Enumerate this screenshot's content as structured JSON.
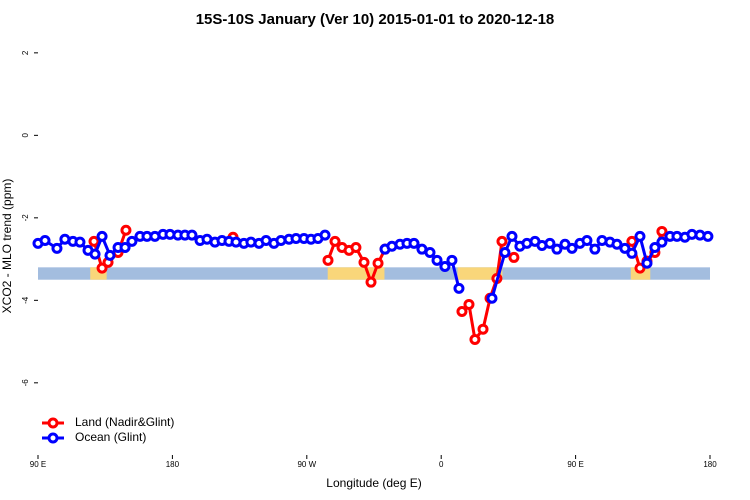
{
  "chart_data": {
    "type": "line",
    "title": "15S-10S January (Ver 10)   2015-01-01 to 2020-12-18",
    "x_label": "Longitude (deg E)",
    "y_label": "XCO2 - MLO trend (ppm)",
    "xlim": [
      90,
      540
    ],
    "xticks": [
      {
        "value": 90,
        "label": "90 E"
      },
      180,
      {
        "value": 270,
        "label": "90 W"
      },
      {
        "value": 360,
        "label": "0"
      },
      {
        "value": 450,
        "label": "90 E"
      },
      {
        "value": 540,
        "label": "180"
      }
    ],
    "ylim": [
      -7.75,
      2.36
    ],
    "yticks": [
      2,
      0,
      -2,
      -4,
      -6
    ],
    "legend": "bottom-left",
    "band": {
      "ylim": [
        -3.5,
        -3.2
      ],
      "color": "#a3bddf",
      "land_color": "#f9d67a",
      "land_spans": [
        [
          125,
          136
        ],
        [
          284,
          322
        ],
        [
          371,
          401
        ],
        [
          487,
          500
        ]
      ]
    },
    "series": [
      {
        "name": "Land (Nadir&Glint)",
        "color": "#ff0000",
        "x": [
          127.5,
          132.9,
          136.9,
          143.6,
          148.9,
          null,
          220.6,
          null,
          284.2,
          288.9,
          293.6,
          298.3,
          302.9,
          308.3,
          313.0,
          317.7,
          322.4,
          null,
          373.9,
          378.6,
          382.6,
          388.0,
          392.7,
          397.3,
          400.7,
          null,
          408.7,
          null,
          487.7,
          493.1,
          497.8,
          503.1,
          507.8
        ],
        "values": [
          -2.57,
          -3.22,
          -3.08,
          -2.84,
          -2.3,
          null,
          -2.47,
          null,
          -3.03,
          -2.57,
          -2.72,
          -2.79,
          -2.72,
          -3.08,
          -3.56,
          -3.1,
          -2.76,
          null,
          -4.27,
          -4.1,
          -4.95,
          -4.7,
          -3.95,
          -3.47,
          -2.57,
          null,
          -2.96,
          null,
          -2.57,
          -3.22,
          -3.05,
          -2.84,
          -2.33
        ]
      },
      {
        "name": "Ocean (Glint)",
        "color": "#0000ff",
        "x": [
          90.0,
          94.7,
          102.7,
          108.0,
          113.4,
          118.1,
          123.5,
          128.2,
          132.9,
          138.2,
          143.6,
          148.3,
          152.9,
          158.3,
          163.0,
          168.3,
          173.7,
          178.4,
          183.7,
          188.4,
          193.1,
          198.5,
          203.2,
          208.5,
          213.2,
          217.9,
          222.6,
          227.9,
          232.6,
          238.0,
          242.7,
          248.0,
          252.7,
          258.1,
          262.8,
          268.1,
          272.8,
          277.5,
          282.2,
          null,
          322.4,
          327.0,
          332.4,
          337.1,
          341.8,
          347.1,
          352.5,
          357.2,
          362.5,
          367.2,
          371.9,
          null,
          394.0,
          402.7,
          407.4,
          412.7,
          417.4,
          422.8,
          427.5,
          432.8,
          437.5,
          442.9,
          447.6,
          452.9,
          457.6,
          462.9,
          467.7,
          473.0,
          477.7,
          483.0,
          487.7,
          493.1,
          497.8,
          503.1,
          507.8,
          513.2,
          517.9,
          523.2,
          527.9,
          533.3,
          538.6
        ],
        "values": [
          -2.62,
          -2.55,
          -2.74,
          -2.52,
          -2.57,
          -2.59,
          -2.79,
          -2.88,
          -2.45,
          -2.91,
          -2.72,
          -2.72,
          -2.57,
          -2.45,
          -2.45,
          -2.45,
          -2.4,
          -2.4,
          -2.42,
          -2.42,
          -2.42,
          -2.55,
          -2.52,
          -2.59,
          -2.55,
          -2.57,
          -2.59,
          -2.62,
          -2.59,
          -2.62,
          -2.55,
          -2.62,
          -2.55,
          -2.52,
          -2.5,
          -2.5,
          -2.52,
          -2.5,
          -2.42,
          null,
          -2.76,
          -2.69,
          -2.64,
          -2.62,
          -2.62,
          -2.76,
          -2.84,
          -3.03,
          -3.18,
          -3.03,
          -3.71,
          null,
          -3.95,
          -2.84,
          -2.45,
          -2.69,
          -2.62,
          -2.57,
          -2.67,
          -2.62,
          -2.76,
          -2.64,
          -2.74,
          -2.62,
          -2.55,
          -2.76,
          -2.55,
          -2.59,
          -2.64,
          -2.74,
          -2.86,
          -2.45,
          -3.1,
          -2.72,
          -2.59,
          -2.45,
          -2.45,
          -2.47,
          -2.4,
          -2.42,
          -2.45
        ]
      }
    ]
  }
}
